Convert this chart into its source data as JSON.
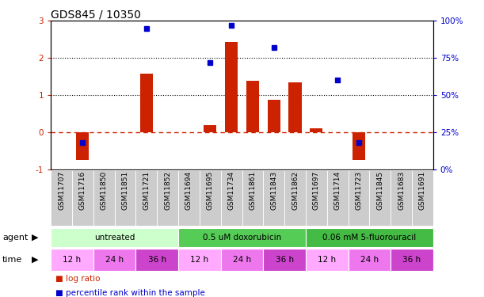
{
  "title": "GDS845 / 10350",
  "samples": [
    "GSM11707",
    "GSM11716",
    "GSM11850",
    "GSM11851",
    "GSM11721",
    "GSM11852",
    "GSM11694",
    "GSM11695",
    "GSM11734",
    "GSM11861",
    "GSM11843",
    "GSM11862",
    "GSM11697",
    "GSM11714",
    "GSM11723",
    "GSM11845",
    "GSM11683",
    "GSM11691"
  ],
  "log_ratio": [
    0.0,
    -0.75,
    0.0,
    0.0,
    1.58,
    0.0,
    0.0,
    0.18,
    2.42,
    1.38,
    0.87,
    1.35,
    0.1,
    0.0,
    -0.75,
    0.0,
    0.0,
    0.0
  ],
  "percentile": [
    null,
    18,
    null,
    null,
    95,
    null,
    null,
    72,
    97,
    null,
    82,
    null,
    null,
    60,
    18,
    null,
    null,
    null
  ],
  "bar_color": "#cc2200",
  "dot_color": "#0000cc",
  "ylim_left": [
    -1,
    3
  ],
  "ylim_right": [
    0,
    100
  ],
  "yticks_left": [
    -1,
    0,
    1,
    2,
    3
  ],
  "yticks_right": [
    0,
    25,
    50,
    75,
    100
  ],
  "yticklabels_right": [
    "0%",
    "25%",
    "50%",
    "75%",
    "100%"
  ],
  "zero_line_color": "#cc2200",
  "dotted_line_color": "#000000",
  "agent_colors": [
    "#ccffcc",
    "#55cc55",
    "#44bb44"
  ],
  "agent_groups": [
    {
      "label": "untreated",
      "start": 0,
      "end": 6,
      "cidx": 0
    },
    {
      "label": "0.5 uM doxorubicin",
      "start": 6,
      "end": 12,
      "cidx": 1
    },
    {
      "label": "0.06 mM 5-fluorouracil",
      "start": 12,
      "end": 18,
      "cidx": 2
    }
  ],
  "time_colors": {
    "12 h": "#ffaaff",
    "24 h": "#ee77ee",
    "36 h": "#cc44cc"
  },
  "time_groups": [
    {
      "label": "12 h",
      "start": 0,
      "end": 2
    },
    {
      "label": "24 h",
      "start": 2,
      "end": 4
    },
    {
      "label": "36 h",
      "start": 4,
      "end": 6
    },
    {
      "label": "12 h",
      "start": 6,
      "end": 8
    },
    {
      "label": "24 h",
      "start": 8,
      "end": 10
    },
    {
      "label": "36 h",
      "start": 10,
      "end": 12
    },
    {
      "label": "12 h",
      "start": 12,
      "end": 14
    },
    {
      "label": "24 h",
      "start": 14,
      "end": 16
    },
    {
      "label": "36 h",
      "start": 16,
      "end": 18
    }
  ],
  "legend_items": [
    {
      "label": "log ratio",
      "color": "#cc2200"
    },
    {
      "label": "percentile rank within the sample",
      "color": "#0000cc"
    }
  ],
  "xlabel_fontsize": 6.5,
  "title_fontsize": 10,
  "tick_fontsize": 7.5,
  "label_fontsize": 8,
  "agent_fontsize": 7.5,
  "time_fontsize": 7.5,
  "legend_fontsize": 7.5,
  "background_color": "#ffffff",
  "sample_row_color": "#cccccc"
}
